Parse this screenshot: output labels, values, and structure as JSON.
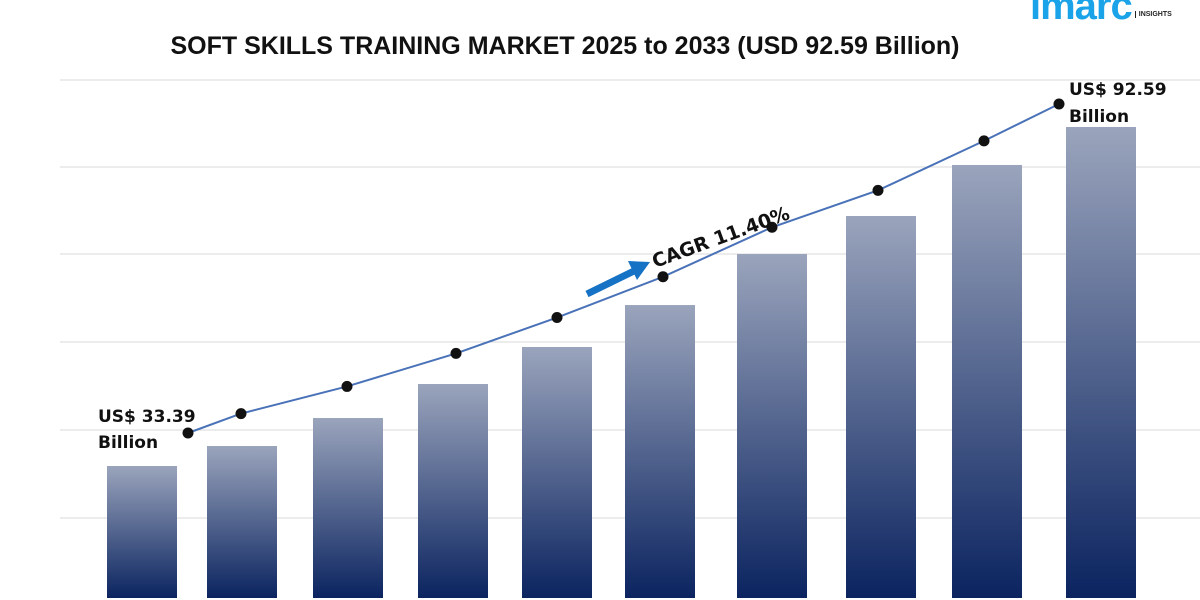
{
  "logo": {
    "brand": "imarc",
    "sub": "INSIGHTS"
  },
  "chart_data": {
    "type": "bar",
    "title": "SOFT SKILLS TRAINING MARKET 2025 to 2033 (USD 92.59 Billion)",
    "values": [
      33.39,
      36.88,
      41.77,
      47.71,
      54.17,
      61.5,
      70.41,
      77.05,
      85.96,
      92.59
    ],
    "overlay": "line",
    "unit": "USD Billion",
    "grid": true,
    "annotations": {
      "start_line1": "US$ 33.39",
      "start_line2": "Billion",
      "end_line1": "US$ 92.59",
      "end_line2": "Billion",
      "cagr": "CAGR 11.40%"
    },
    "colors": {
      "bar_top": "#9aa4bc",
      "bar_bottom": "#0b2460",
      "line": "#4a72b8",
      "marker": "#111111",
      "arrow": "#1572c4"
    }
  }
}
